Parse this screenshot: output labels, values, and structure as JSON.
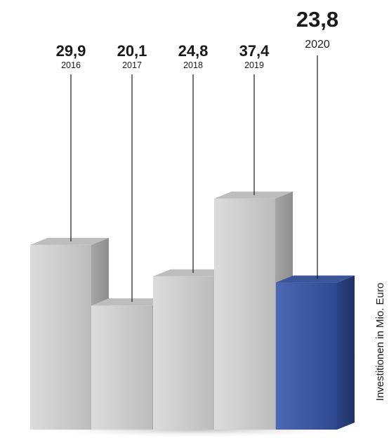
{
  "chart_data": {
    "type": "bar",
    "categories": [
      "2016",
      "2017",
      "2018",
      "2019",
      "2020"
    ],
    "values": [
      29.9,
      20.1,
      24.8,
      37.4,
      23.8
    ],
    "value_labels": [
      "29,9",
      "20,1",
      "24,8",
      "37,4",
      "23,8"
    ],
    "highlight_index": 4,
    "ylabel": "Investitionen in Mio. Euro",
    "title": "",
    "xlabel": "",
    "grid": false,
    "legend": "none",
    "colors": {
      "bar_light": "#d6d6d6",
      "bar_dark": "#9a9a9a",
      "bar_top": "#bdbdbd",
      "highlight_front_light": "#4a65b0",
      "highlight_front_dark": "#2f4a94",
      "highlight_side": "#243c7d",
      "highlight_top": "#3a5599",
      "shadow": "#cfcfcf"
    }
  }
}
